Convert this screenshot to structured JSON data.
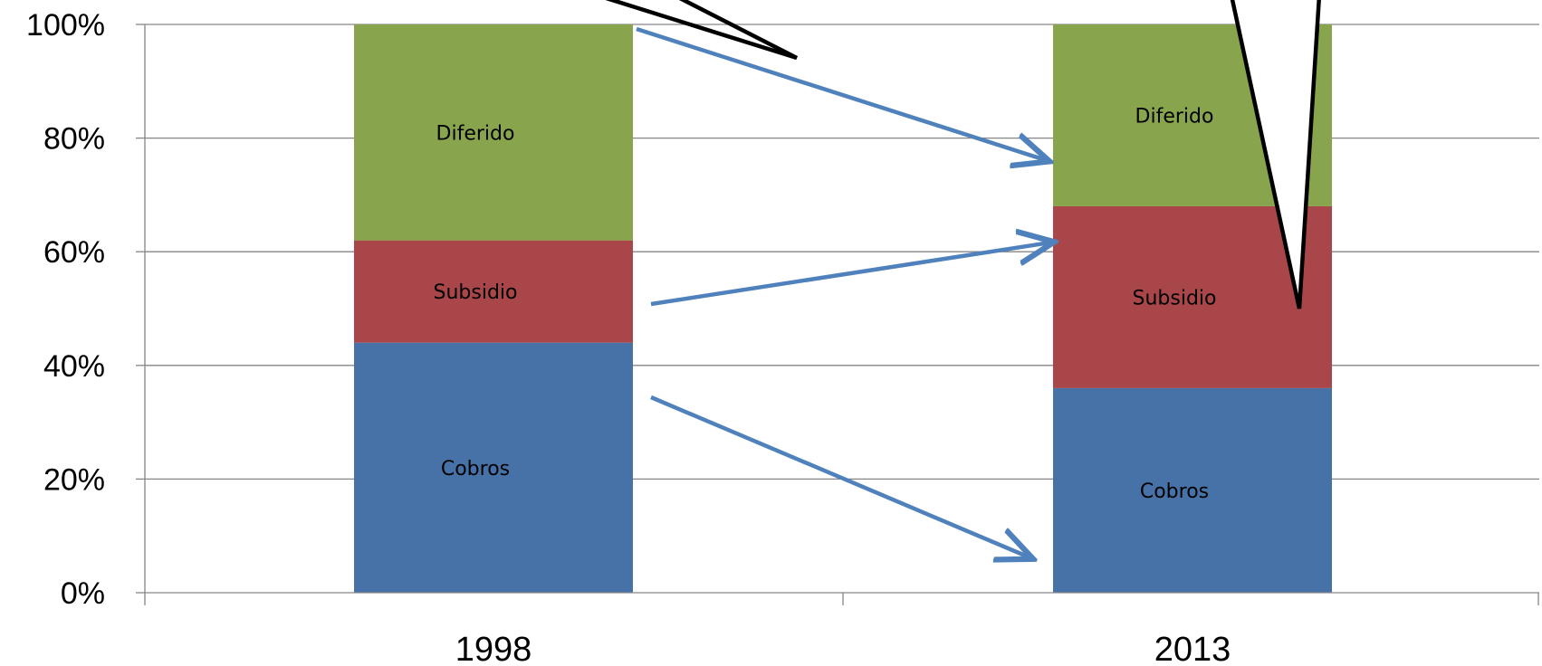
{
  "chart_data": {
    "type": "bar",
    "stacked": true,
    "categories": [
      "1998",
      "2013"
    ],
    "series": [
      {
        "name": "Cobros",
        "values": [
          44,
          36
        ]
      },
      {
        "name": "Subsidio",
        "values": [
          18,
          32
        ]
      },
      {
        "name": "Diferido",
        "values": [
          38,
          32
        ]
      }
    ],
    "segment_labels": [
      [
        "Cobros",
        "Subsidio",
        "Diferido"
      ],
      [
        "Cobros",
        "Subsidio",
        "Diferido"
      ]
    ],
    "y_ticks": [
      "0%",
      "20%",
      "40%",
      "60%",
      "80%",
      "100%"
    ],
    "ylim": [
      0,
      100
    ],
    "grid": true,
    "legend": "none",
    "title": "",
    "xlabel": "",
    "ylabel": ""
  },
  "colors": {
    "Cobros": "#4672A8",
    "Subsidio": "#A9464A",
    "Diferido": "#88A54E",
    "arrow": "#4F81BD",
    "grid": "#868686",
    "callout": "#000000"
  }
}
